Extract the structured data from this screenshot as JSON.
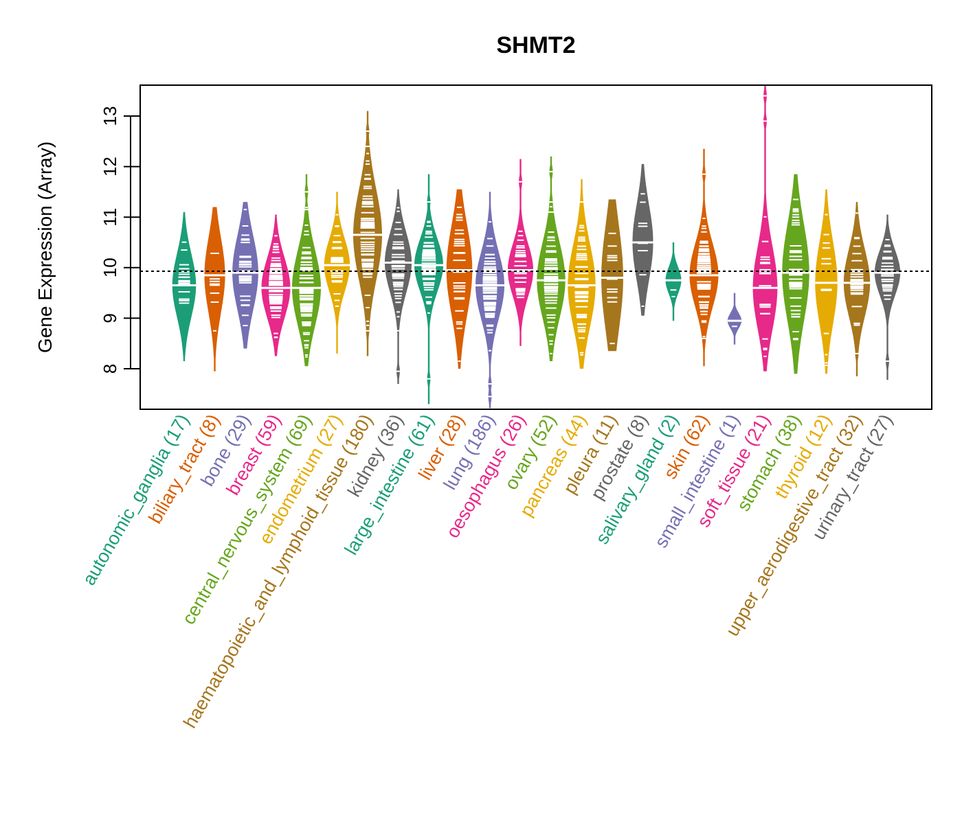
{
  "chart_data": {
    "type": "violin",
    "title": "SHMT2",
    "xlabel": "",
    "ylabel": "Gene Expression (Array)",
    "ylim": [
      7.2,
      13.6
    ],
    "yticks": [
      8,
      9,
      10,
      11,
      12,
      13
    ],
    "reference_line": 9.93,
    "grid": false,
    "legend": "none",
    "categories": [
      {
        "name": "autonomic_ganglia",
        "n": 17,
        "label": "autonomic_ganglia (17)",
        "color": "#1B9E77",
        "min": 8.15,
        "max": 11.1,
        "median": 9.65,
        "q1": 9.2,
        "q3": 10.05,
        "outliers": []
      },
      {
        "name": "biliary_tract",
        "n": 8,
        "label": "biliary_tract (8)",
        "color": "#D95F02",
        "min": 7.95,
        "max": 11.2,
        "median": 9.85,
        "q1": 9.4,
        "q3": 10.4,
        "outliers": []
      },
      {
        "name": "bone",
        "n": 29,
        "label": "bone (29)",
        "color": "#7570B3",
        "min": 8.4,
        "max": 11.3,
        "median": 9.9,
        "q1": 9.4,
        "q3": 10.4,
        "outliers": []
      },
      {
        "name": "breast",
        "n": 59,
        "label": "breast (59)",
        "color": "#E7298A",
        "min": 8.25,
        "max": 11.05,
        "median": 9.6,
        "q1": 9.2,
        "q3": 10.0,
        "outliers": []
      },
      {
        "name": "central_nervous_system",
        "n": 69,
        "label": "central_nervous_system (69)",
        "color": "#66A61E",
        "min": 8.05,
        "max": 11.85,
        "median": 9.6,
        "q1": 9.1,
        "q3": 10.1,
        "outliers": [
          11.5,
          11.15
        ]
      },
      {
        "name": "endometrium",
        "n": 27,
        "label": "endometrium (27)",
        "color": "#E6AB02",
        "min": 8.3,
        "max": 11.5,
        "median": 10.05,
        "q1": 9.7,
        "q3": 10.4,
        "outliers": []
      },
      {
        "name": "haematopoietic_and_lymphoid_tissue",
        "n": 180,
        "label": "haematopoietic_and_lymphoid_tissue (180)",
        "color": "#A6761D",
        "min": 8.25,
        "max": 13.1,
        "median": 10.65,
        "q1": 10.0,
        "q3": 11.2,
        "outliers": [
          12.7,
          12.4,
          8.75
        ]
      },
      {
        "name": "kidney",
        "n": 36,
        "label": "kidney (36)",
        "color": "#666666",
        "min": 7.7,
        "max": 11.55,
        "median": 10.1,
        "q1": 9.7,
        "q3": 10.5,
        "outliers": [
          7.95
        ]
      },
      {
        "name": "large_intestine",
        "n": 61,
        "label": "large_intestine (61)",
        "color": "#1B9E77",
        "min": 7.3,
        "max": 11.85,
        "median": 10.05,
        "q1": 9.7,
        "q3": 10.4,
        "outliers": [
          11.3,
          7.8
        ]
      },
      {
        "name": "liver",
        "n": 28,
        "label": "liver (28)",
        "color": "#D95F02",
        "min": 8.0,
        "max": 11.55,
        "median": 9.95,
        "q1": 9.3,
        "q3": 10.5,
        "outliers": []
      },
      {
        "name": "lung",
        "n": 186,
        "label": "lung (186)",
        "color": "#7570B3",
        "min": 7.22,
        "max": 11.5,
        "median": 9.65,
        "q1": 9.2,
        "q3": 10.1,
        "outliers": [
          7.7,
          7.45
        ]
      },
      {
        "name": "oesophagus",
        "n": 26,
        "label": "oesophagus (26)",
        "color": "#E7298A",
        "min": 8.45,
        "max": 12.15,
        "median": 9.95,
        "q1": 9.6,
        "q3": 10.3,
        "outliers": [
          11.7
        ]
      },
      {
        "name": "ovary",
        "n": 52,
        "label": "ovary (52)",
        "color": "#66A61E",
        "min": 8.15,
        "max": 12.2,
        "median": 9.75,
        "q1": 9.3,
        "q3": 10.3,
        "outliers": [
          11.9,
          11.3,
          11.1
        ]
      },
      {
        "name": "pancreas",
        "n": 44,
        "label": "pancreas (44)",
        "color": "#E6AB02",
        "min": 8.0,
        "max": 11.75,
        "median": 9.65,
        "q1": 9.1,
        "q3": 10.2,
        "outliers": [
          11.3
        ]
      },
      {
        "name": "pleura",
        "n": 11,
        "label": "pleura (11)",
        "color": "#A6761D",
        "min": 8.35,
        "max": 11.35,
        "median": 9.8,
        "q1": 9.1,
        "q3": 10.5,
        "outliers": []
      },
      {
        "name": "prostate",
        "n": 8,
        "label": "prostate (8)",
        "color": "#666666",
        "min": 9.05,
        "max": 12.05,
        "median": 10.5,
        "q1": 10.0,
        "q3": 11.0,
        "outliers": []
      },
      {
        "name": "salivary_gland",
        "n": 2,
        "label": "salivary_gland (2)",
        "color": "#1B9E77",
        "min": 8.95,
        "max": 10.5,
        "median": 9.75,
        "q1": 9.6,
        "q3": 9.95,
        "outliers": []
      },
      {
        "name": "skin",
        "n": 62,
        "label": "skin (62)",
        "color": "#D95F02",
        "min": 8.05,
        "max": 12.35,
        "median": 9.85,
        "q1": 9.45,
        "q3": 10.3,
        "outliers": [
          11.85,
          8.6
        ]
      },
      {
        "name": "small_intestine",
        "n": 1,
        "label": "small_intestine (1)",
        "color": "#7570B3",
        "min": 8.48,
        "max": 9.5,
        "median": 8.95,
        "q1": 8.95,
        "q3": 8.95,
        "outliers": []
      },
      {
        "name": "soft_tissue",
        "n": 21,
        "label": "soft_tissue (21)",
        "color": "#E7298A",
        "min": 7.95,
        "max": 13.6,
        "median": 9.6,
        "q1": 9.2,
        "q3": 10.3,
        "outliers": [
          13.4,
          12.9
        ]
      },
      {
        "name": "stomach",
        "n": 38,
        "label": "stomach (38)",
        "color": "#66A61E",
        "min": 7.9,
        "max": 11.85,
        "median": 9.9,
        "q1": 9.2,
        "q3": 10.5,
        "outliers": [
          11.35
        ]
      },
      {
        "name": "thyroid",
        "n": 12,
        "label": "thyroid (12)",
        "color": "#E6AB02",
        "min": 7.9,
        "max": 11.55,
        "median": 9.7,
        "q1": 9.3,
        "q3": 10.4,
        "outliers": []
      },
      {
        "name": "upper_aerodigestive_tract",
        "n": 32,
        "label": "upper_aerodigestive_tract (32)",
        "color": "#A6761D",
        "min": 7.85,
        "max": 11.3,
        "median": 9.7,
        "q1": 9.3,
        "q3": 10.2,
        "outliers": [
          8.3
        ]
      },
      {
        "name": "urinary_tract",
        "n": 27,
        "label": "urinary_tract (27)",
        "color": "#666666",
        "min": 7.78,
        "max": 11.05,
        "median": 9.9,
        "q1": 9.6,
        "q3": 10.2,
        "outliers": [
          8.15
        ]
      }
    ]
  }
}
